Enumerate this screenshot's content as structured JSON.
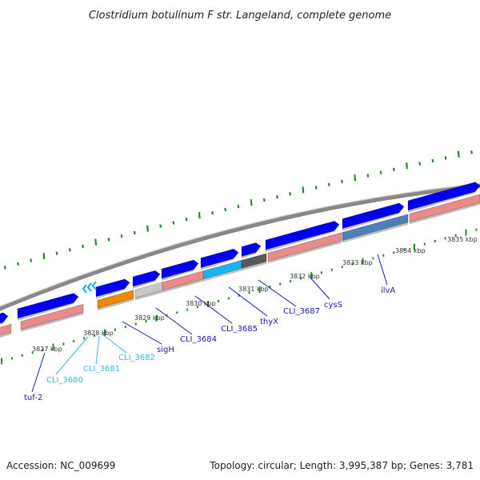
{
  "title": "Clostridium botulinum F str. Langeland, complete genome",
  "accession": "Accession: NC_009699",
  "topology": "Topology: circular; Length: 3,995,387 bp; Genes: 3,781",
  "colors": {
    "backbone": "#888888",
    "forward_gene": "#0000ee",
    "cds": "#e98b8b",
    "cds_blue": "#4f7fb8",
    "gray": "#c8c8c8",
    "dark_gray": "#5a5a5a",
    "orange": "#ee8800",
    "cyan": "#18b4ee",
    "tick": "#2a8a2a",
    "label_dark": "#1a1aaa",
    "label_light": "#33bbdd"
  },
  "kbp_labels": [
    "3827 kbp",
    "3828 kbp",
    "3829 kbp",
    "3830 kbp",
    "3831 kbp",
    "3832 kbp",
    "3833 kbp",
    "3834 kbp",
    "3835 kbp"
  ],
  "gene_labels": [
    {
      "text": "tuf-2",
      "color": "dark"
    },
    {
      "text": "CLI_3680",
      "color": "light"
    },
    {
      "text": "CLI_3681",
      "color": "light"
    },
    {
      "text": "CLI_3682",
      "color": "light"
    },
    {
      "text": "sigH",
      "color": "dark"
    },
    {
      "text": "CLI_3684",
      "color": "dark"
    },
    {
      "text": "CLI_3685",
      "color": "dark"
    },
    {
      "text": "thyX",
      "color": "dark"
    },
    {
      "text": "CLI_3687",
      "color": "dark"
    },
    {
      "text": "cysS",
      "color": "dark"
    },
    {
      "text": "ilvA",
      "color": "dark"
    }
  ]
}
